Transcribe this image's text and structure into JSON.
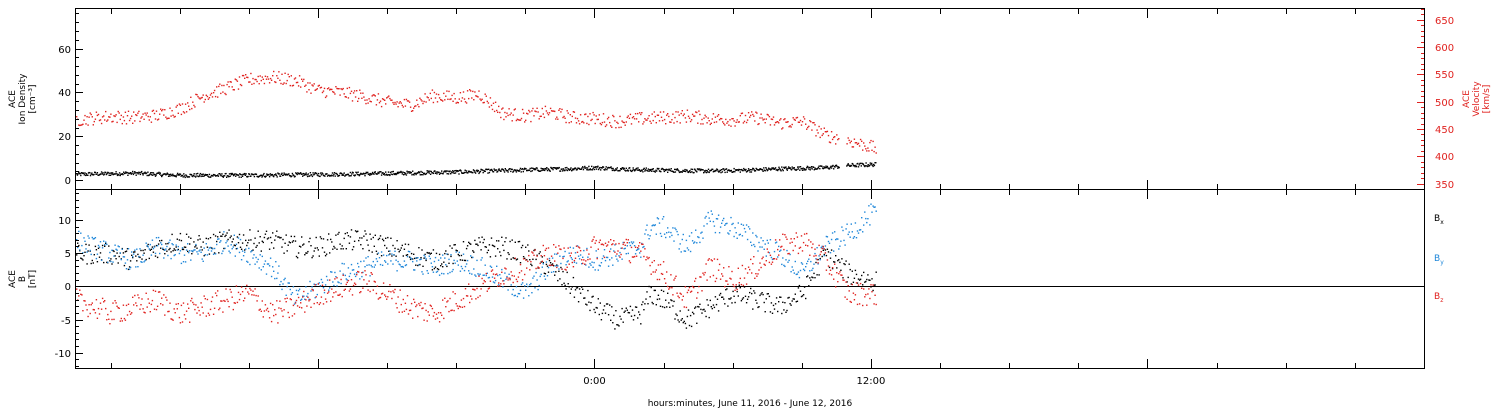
{
  "chart_data": [
    {
      "type": "scatter",
      "panel": "top",
      "xlabel": "hours:minutes, June 11, 2016 - June 12, 2016",
      "xlim_hours": [
        -22.5,
        36.0
      ],
      "xticks": [
        {
          "hour": 0,
          "label": "0:00"
        },
        {
          "hour": 12,
          "label": "12:00"
        }
      ],
      "left_axis": {
        "label": [
          "ACE",
          "Ion Density",
          "[cm⁻³]"
        ],
        "ylim": [
          -4,
          78
        ],
        "ticks": [
          0,
          20,
          40,
          60
        ]
      },
      "right_axis": {
        "label": [
          "ACE",
          "Velocity",
          "[km/s]"
        ],
        "ylim": [
          340,
          670
        ],
        "ticks": [
          350,
          400,
          450,
          500,
          550,
          600,
          650
        ],
        "color": "#e0221f"
      },
      "series": [
        {
          "name": "",
          "axis": "left",
          "color": "#000000",
          "scatter": 0.9,
          "x_start": -22.5,
          "x_end": 12.2,
          "gaps": [
            [
              10.6,
              10.9
            ]
          ],
          "points": [
            [
              -22.5,
              3.0
            ],
            [
              -20,
              3.5
            ],
            [
              -18,
              2.5
            ],
            [
              -15,
              2.5
            ],
            [
              -10,
              3.2
            ],
            [
              -6,
              4.0
            ],
            [
              -3,
              5.0
            ],
            [
              -1,
              5.5
            ],
            [
              0,
              6.0
            ],
            [
              2,
              5.0
            ],
            [
              5,
              4.5
            ],
            [
              7,
              5.0
            ],
            [
              8,
              5.5
            ],
            [
              10,
              6.0
            ],
            [
              11,
              7.0
            ],
            [
              12.2,
              7.5
            ]
          ]
        },
        {
          "name": "",
          "axis": "right",
          "color": "#e0221f",
          "scatter": 12,
          "x_start": -22.5,
          "x_end": 12.2,
          "gaps": [
            [
              10.6,
              10.9
            ]
          ],
          "points": [
            [
              -22.5,
              468
            ],
            [
              -21,
              474
            ],
            [
              -20,
              472
            ],
            [
              -19,
              476
            ],
            [
              -18,
              488
            ],
            [
              -17,
              512
            ],
            [
              -16,
              526
            ],
            [
              -15,
              542
            ],
            [
              -14,
              546
            ],
            [
              -13,
              540
            ],
            [
              -12,
              522
            ],
            [
              -11,
              518
            ],
            [
              -10,
              510
            ],
            [
              -9,
              500
            ],
            [
              -8,
              495
            ],
            [
              -7,
              512
            ],
            [
              -6,
              508
            ],
            [
              -5,
              515
            ],
            [
              -4,
              480
            ],
            [
              -3,
              475
            ],
            [
              -2,
              482
            ],
            [
              -1,
              472
            ],
            [
              0,
              470
            ],
            [
              1,
              465
            ],
            [
              2,
              470
            ],
            [
              3,
              472
            ],
            [
              4,
              475
            ],
            [
              5,
              470
            ],
            [
              6,
              468
            ],
            [
              7,
              472
            ],
            [
              8,
              462
            ],
            [
              9,
              465
            ],
            [
              10,
              440
            ],
            [
              11,
              430
            ],
            [
              12,
              418
            ],
            [
              12.2,
              415
            ]
          ]
        }
      ]
    },
    {
      "type": "scatter",
      "panel": "bottom",
      "xlabel": "hours:minutes, June 11, 2016 - June 12, 2016",
      "xlim_hours": [
        -22.5,
        36.0
      ],
      "xticks": [
        {
          "hour": 0,
          "label": "0:00"
        },
        {
          "hour": 12,
          "label": "12:00"
        }
      ],
      "left_axis": {
        "label": [
          "ACE",
          "B",
          "[nT]"
        ],
        "ylim": [
          -12.3,
          14.5
        ],
        "ticks": [
          -10,
          -5,
          0,
          5,
          10
        ]
      },
      "zero_line": true,
      "series": [
        {
          "name": "Bx",
          "legend": {
            "main": "B",
            "sub": "x"
          },
          "color": "#000000",
          "scatter": 1.6,
          "x_start": -22.5,
          "x_end": 12.2,
          "points": [
            [
              -22.5,
              5
            ],
            [
              -21,
              5
            ],
            [
              -20,
              4
            ],
            [
              -19,
              6
            ],
            [
              -18,
              7
            ],
            [
              -17,
              6
            ],
            [
              -16,
              7
            ],
            [
              -15,
              7
            ],
            [
              -14,
              7
            ],
            [
              -13,
              6
            ],
            [
              -12,
              6
            ],
            [
              -11,
              7
            ],
            [
              -10,
              7
            ],
            [
              -9,
              6
            ],
            [
              -8,
              5
            ],
            [
              -7,
              4
            ],
            [
              -6,
              5
            ],
            [
              -5,
              6
            ],
            [
              -4,
              6
            ],
            [
              -3,
              5
            ],
            [
              -2,
              3
            ],
            [
              -1,
              0
            ],
            [
              0,
              -3
            ],
            [
              1,
              -5
            ],
            [
              2,
              -4
            ],
            [
              2.4,
              -1
            ],
            [
              3,
              -2
            ],
            [
              4,
              -5
            ],
            [
              5,
              -3
            ],
            [
              6,
              -1
            ],
            [
              7,
              -2
            ],
            [
              8,
              -3
            ],
            [
              9,
              -1
            ],
            [
              10,
              5
            ],
            [
              11,
              2
            ],
            [
              12,
              1
            ],
            [
              12.2,
              1
            ]
          ]
        },
        {
          "name": "By",
          "legend": {
            "main": "B",
            "sub": "y"
          },
          "color": "#1f87d9",
          "scatter": 1.6,
          "x_start": -22.5,
          "x_end": 12.2,
          "points": [
            [
              -22.5,
              7
            ],
            [
              -21,
              5
            ],
            [
              -20,
              4
            ],
            [
              -19,
              6
            ],
            [
              -18,
              5
            ],
            [
              -17,
              5
            ],
            [
              -16,
              7
            ],
            [
              -15,
              5
            ],
            [
              -14,
              3
            ],
            [
              -13,
              -2
            ],
            [
              -12,
              0
            ],
            [
              -11,
              2
            ],
            [
              -10,
              3
            ],
            [
              -9,
              4
            ],
            [
              -8,
              4
            ],
            [
              -7,
              3
            ],
            [
              -6,
              4
            ],
            [
              -5,
              3
            ],
            [
              -4,
              1
            ],
            [
              -3,
              -1
            ],
            [
              -2,
              3
            ],
            [
              -1,
              5
            ],
            [
              0,
              4
            ],
            [
              1,
              5
            ],
            [
              2,
              6
            ],
            [
              2.4,
              9
            ],
            [
              3,
              9
            ],
            [
              4,
              6
            ],
            [
              5,
              10
            ],
            [
              6,
              9
            ],
            [
              7,
              7
            ],
            [
              8,
              5
            ],
            [
              9,
              2
            ],
            [
              10,
              6
            ],
            [
              11,
              8
            ],
            [
              12,
              11
            ],
            [
              12.2,
              11
            ]
          ]
        },
        {
          "name": "Bz",
          "legend": {
            "main": "B",
            "sub": "z"
          },
          "color": "#e0221f",
          "scatter": 1.8,
          "x_start": -22.5,
          "x_end": 12.2,
          "points": [
            [
              -22.5,
              -2
            ],
            [
              -21,
              -4
            ],
            [
              -20,
              -3
            ],
            [
              -19,
              -2
            ],
            [
              -18,
              -4
            ],
            [
              -17,
              -3
            ],
            [
              -16,
              -2
            ],
            [
              -15,
              -1
            ],
            [
              -14,
              -4
            ],
            [
              -13,
              -3
            ],
            [
              -12,
              -1
            ],
            [
              -11,
              0
            ],
            [
              -10,
              1
            ],
            [
              -9,
              -1
            ],
            [
              -8,
              -3
            ],
            [
              -7,
              -4
            ],
            [
              -6,
              -2
            ],
            [
              -5,
              0
            ],
            [
              -4,
              2
            ],
            [
              -3,
              3
            ],
            [
              -2,
              5
            ],
            [
              -1,
              4
            ],
            [
              0,
              6
            ],
            [
              1,
              6
            ],
            [
              2,
              5
            ],
            [
              3,
              2
            ],
            [
              4,
              -2
            ],
            [
              5,
              3
            ],
            [
              6,
              1
            ],
            [
              7,
              3
            ],
            [
              8,
              6
            ],
            [
              9,
              7
            ],
            [
              10,
              4
            ],
            [
              11,
              -1
            ],
            [
              12,
              -1
            ],
            [
              12.2,
              -1
            ]
          ]
        }
      ]
    }
  ]
}
